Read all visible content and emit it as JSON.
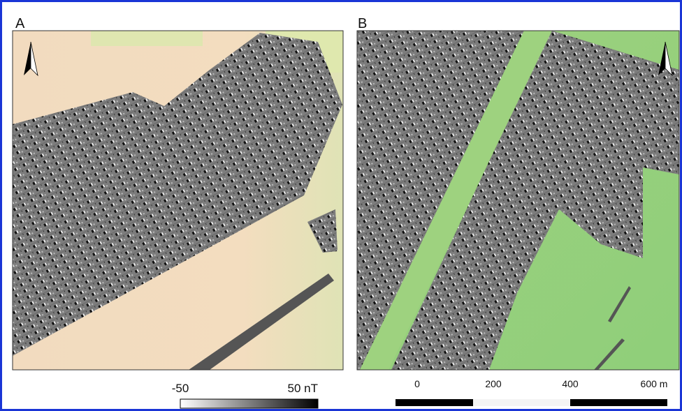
{
  "panels": [
    {
      "label": "A"
    },
    {
      "label": "B"
    }
  ],
  "colorbar": {
    "min_label": "-50",
    "max_label": "50 nT"
  },
  "scale_bar": {
    "labels": [
      "0",
      "200",
      "400",
      "600 m"
    ]
  }
}
